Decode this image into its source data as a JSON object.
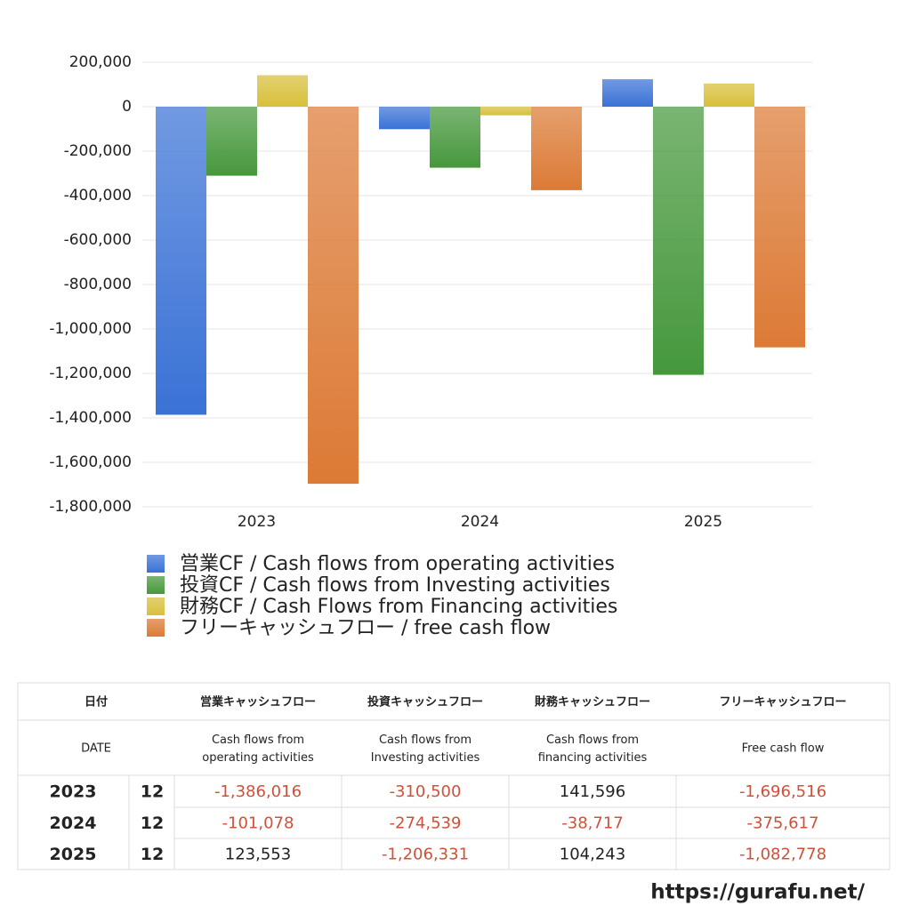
{
  "chart_data": {
    "type": "bar",
    "categories": [
      "2023",
      "2024",
      "2025"
    ],
    "series": [
      {
        "name": "営業CF / Cash flows from operating activities",
        "color": "#3a72d6",
        "values": [
          -1386016,
          -101078,
          123553
        ]
      },
      {
        "name": "投資CF / Cash flows from Investing activities",
        "color": "#46983c",
        "values": [
          -310500,
          -274539,
          -1206331
        ]
      },
      {
        "name": "財務CF / Cash Flows from Financing activities",
        "color": "#d8bf3a",
        "values": [
          141596,
          -38717,
          104243
        ]
      },
      {
        "name": "フリーキャッシュフロー / free cash flow",
        "color": "#dc7a35",
        "values": [
          -1696516,
          -375617,
          -1082778
        ]
      }
    ],
    "ylim": [
      -1800000,
      200000
    ],
    "yticks": [
      {
        "value": -1800000,
        "label": "-1,800,000"
      },
      {
        "value": -1600000,
        "label": "-1,600,000"
      },
      {
        "value": -1400000,
        "label": "-1,400,000"
      },
      {
        "value": -1200000,
        "label": "-1,200,000"
      },
      {
        "value": -1000000,
        "label": "-1,000,000"
      },
      {
        "value": -800000,
        "label": "-800,000"
      },
      {
        "value": -600000,
        "label": "-600,000"
      },
      {
        "value": -400000,
        "label": "-400,000"
      },
      {
        "value": -200000,
        "label": "-200,000"
      },
      0,
      {
        "value": 200000,
        "label": "200,000"
      }
    ],
    "grid": true
  },
  "table": {
    "header": [
      "日付",
      "営業キャッシュフロー",
      "投資キャッシュフロー",
      "財務キャッシュフロー",
      "フリーキャッシュフロー"
    ],
    "subheader": [
      "DATE",
      "Cash flows from operating activities",
      "Cash flows from Investing activities",
      "Cash flows from financing activities",
      "Free cash flow"
    ],
    "rows": [
      [
        "2023",
        "12",
        "-1,386,016",
        "-310,500",
        "141,596",
        "-1,696,516"
      ],
      [
        "2024",
        "12",
        "-101,078",
        "-274,539",
        "-38,717",
        "-375,617"
      ],
      [
        "2025",
        "12",
        "123,553",
        "-1,206,331",
        "104,243",
        "-1,082,778"
      ]
    ]
  },
  "footer": "https://gurafu.net/"
}
